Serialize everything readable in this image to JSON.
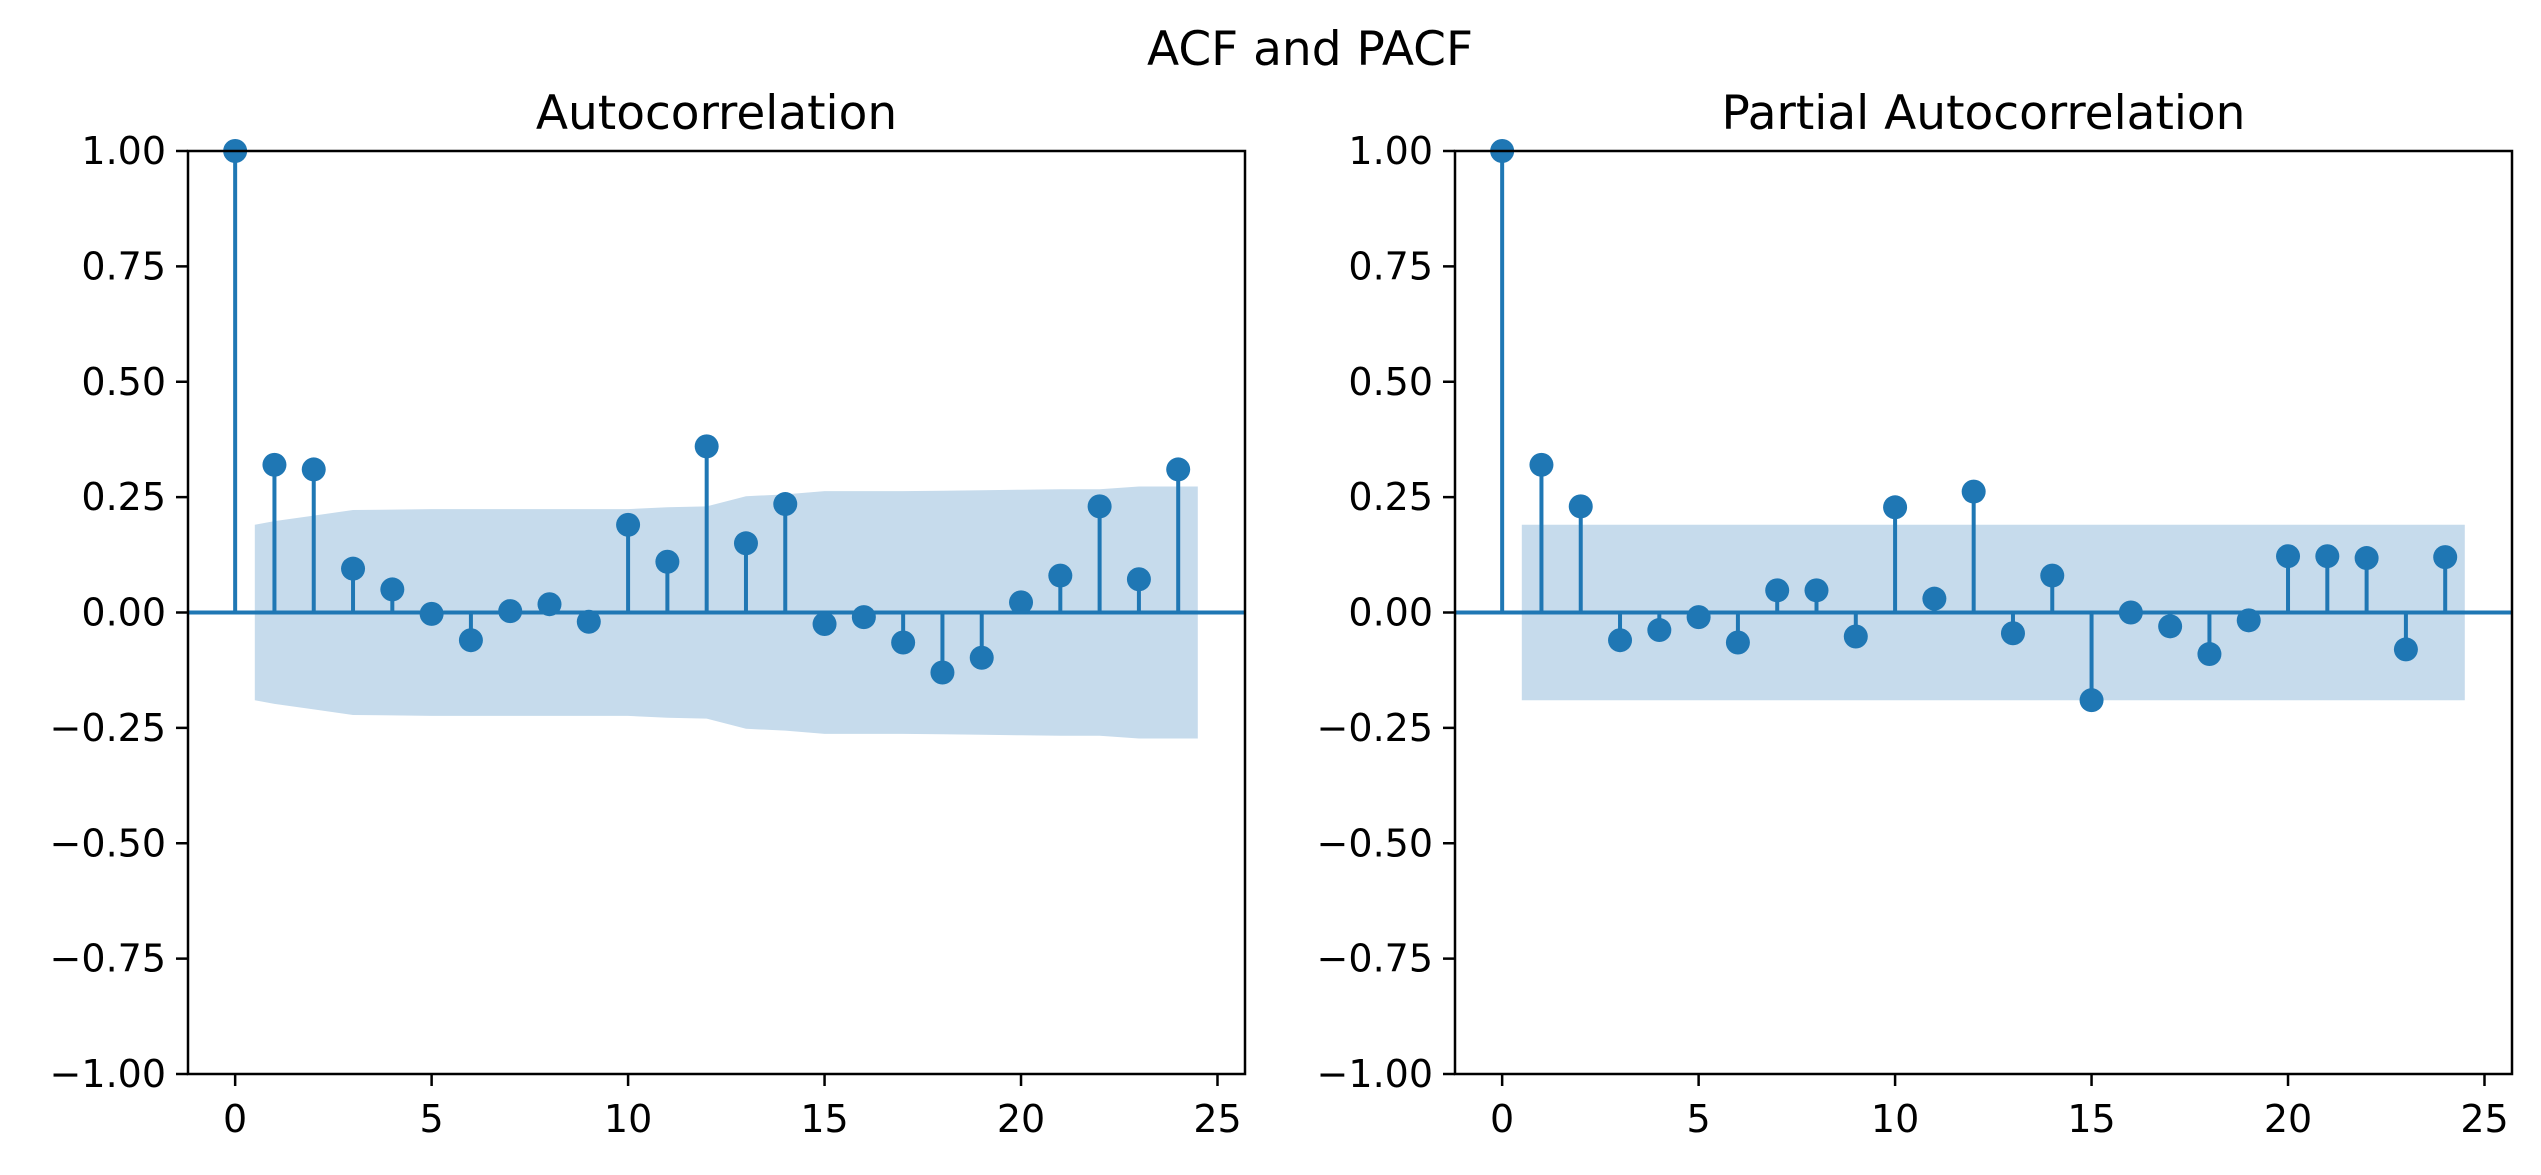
{
  "figure_title": "ACF and PACF",
  "colors": {
    "stem": "#1f77b4",
    "band": "#c6dbec",
    "axis": "#000000"
  },
  "chart_data": [
    {
      "type": "stem",
      "title": "Autocorrelation",
      "xlabel": "",
      "ylabel": "",
      "xlim": [
        -1.2,
        25.7
      ],
      "ylim": [
        -1.0,
        1.0
      ],
      "xticks": [
        0,
        5,
        10,
        15,
        20,
        25
      ],
      "yticks": [
        -1.0,
        -0.75,
        -0.5,
        -0.25,
        0.0,
        0.25,
        0.5,
        0.75,
        1.0
      ],
      "ytick_labels": [
        "−1.00",
        "−0.75",
        "−0.50",
        "−0.25",
        "0.00",
        "0.25",
        "0.50",
        "0.75",
        "1.00"
      ],
      "grid": false,
      "lags": [
        0,
        1,
        2,
        3,
        4,
        5,
        6,
        7,
        8,
        9,
        10,
        11,
        12,
        13,
        14,
        15,
        16,
        17,
        18,
        19,
        20,
        21,
        22,
        23,
        24
      ],
      "values": [
        1.0,
        0.32,
        0.31,
        0.095,
        0.05,
        -0.003,
        -0.06,
        0.003,
        0.018,
        -0.02,
        0.19,
        0.11,
        0.36,
        0.15,
        0.235,
        -0.025,
        -0.01,
        -0.065,
        -0.13,
        -0.098,
        0.022,
        0.08,
        0.23,
        0.072,
        0.31
      ],
      "confidence_band": {
        "x": [
          0.5,
          1,
          2,
          3,
          4,
          5,
          6,
          7,
          8,
          9,
          10,
          11,
          12,
          13,
          14,
          15,
          16,
          17,
          18,
          19,
          20,
          21,
          22,
          23,
          24,
          24.5
        ],
        "upper": [
          0.19,
          0.198,
          0.21,
          0.222,
          0.223,
          0.224,
          0.224,
          0.224,
          0.224,
          0.224,
          0.224,
          0.228,
          0.23,
          0.252,
          0.256,
          0.263,
          0.263,
          0.263,
          0.264,
          0.265,
          0.266,
          0.267,
          0.267,
          0.273,
          0.273,
          0.273
        ]
      }
    },
    {
      "type": "stem",
      "title": "Partial Autocorrelation",
      "xlabel": "",
      "ylabel": "",
      "xlim": [
        -1.2,
        25.7
      ],
      "ylim": [
        -1.0,
        1.0
      ],
      "xticks": [
        0,
        5,
        10,
        15,
        20,
        25
      ],
      "yticks": [
        -1.0,
        -0.75,
        -0.5,
        -0.25,
        0.0,
        0.25,
        0.5,
        0.75,
        1.0
      ],
      "ytick_labels": [
        "−1.00",
        "−0.75",
        "−0.50",
        "−0.25",
        "0.00",
        "0.25",
        "0.50",
        "0.75",
        "1.00"
      ],
      "grid": false,
      "lags": [
        0,
        1,
        2,
        3,
        4,
        5,
        6,
        7,
        8,
        9,
        10,
        11,
        12,
        13,
        14,
        15,
        16,
        17,
        18,
        19,
        20,
        21,
        22,
        23,
        24
      ],
      "values": [
        1.0,
        0.32,
        0.23,
        -0.06,
        -0.038,
        -0.01,
        -0.065,
        0.048,
        0.048,
        -0.052,
        0.228,
        0.03,
        0.262,
        -0.045,
        0.08,
        -0.19,
        0.0,
        -0.03,
        -0.09,
        -0.017,
        0.122,
        0.122,
        0.118,
        -0.08,
        0.12
      ],
      "confidence_band": {
        "x": [
          0.5,
          24.5
        ],
        "upper": [
          0.19,
          0.19
        ]
      }
    }
  ]
}
